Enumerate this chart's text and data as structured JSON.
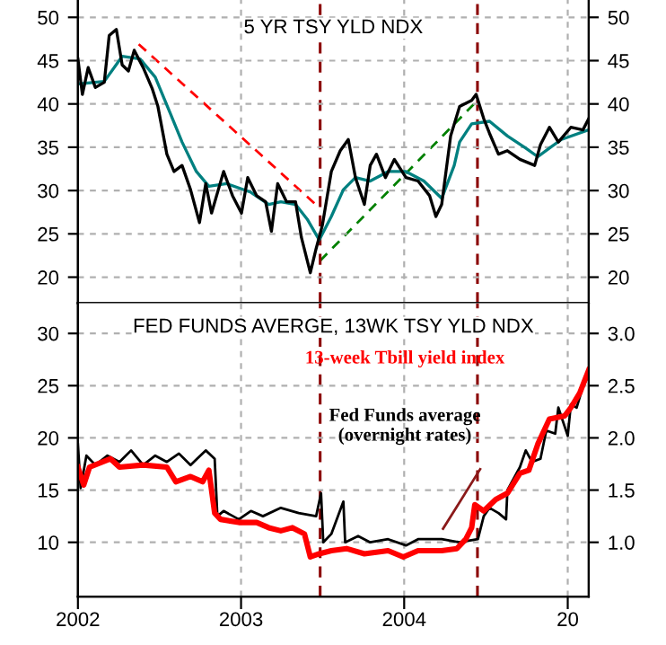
{
  "chart_data": [
    {
      "type": "line",
      "title": "5 YR TSY YLD NDX",
      "tick_labels": "y",
      "grid": true,
      "xlim": [
        "2002-01-01",
        "2005-02-17"
      ],
      "xticks": [
        {
          "value": "2003-01-01",
          "label": null
        },
        {
          "value": "2004-01-01",
          "label": null
        },
        {
          "value": "2005-01-01",
          "label": null
        }
      ],
      "ylim": [
        17,
        52
      ],
      "yticks": [
        20,
        25,
        30,
        35,
        40,
        45,
        50
      ],
      "y2lim": [
        17,
        52
      ],
      "y2ticks": [
        20,
        25,
        30,
        35,
        40,
        45,
        50
      ],
      "ref_lines": [
        {
          "axis": "x",
          "value": "2003-06-27",
          "color": "#8b0000",
          "line_style": "dashed"
        },
        {
          "axis": "x",
          "value": "2004-06-13",
          "color": "#8b0000",
          "line_style": "dashed"
        }
      ],
      "series": [
        {
          "color": "#000000",
          "x": [
            "2002-01-01",
            "2002-01-11",
            "2002-01-24",
            "2002-02-09",
            "2002-03-01",
            "2002-03-12",
            "2002-03-28",
            "2002-04-10",
            "2002-04-24",
            "2002-05-07",
            "2002-05-27",
            "2002-06-16",
            "2002-06-29",
            "2002-07-19",
            "2002-08-04",
            "2002-08-22",
            "2002-09-10",
            "2002-09-30",
            "2002-10-14",
            "2002-10-27",
            "2002-11-23",
            "2002-12-13",
            "2003-01-02",
            "2003-01-16",
            "2003-02-05",
            "2003-02-25",
            "2003-03-10",
            "2003-03-24",
            "2003-04-13",
            "2003-05-03",
            "2003-05-16",
            "2003-06-05",
            "2003-06-18",
            "2003-07-02",
            "2003-07-22",
            "2003-08-11",
            "2003-08-29",
            "2003-09-14",
            "2003-10-04",
            "2003-10-17",
            "2003-10-31",
            "2003-11-20",
            "2003-12-10",
            "2004-01-05",
            "2004-02-01",
            "2004-02-27",
            "2004-03-12",
            "2004-03-25",
            "2004-04-14",
            "2004-05-04",
            "2004-05-31",
            "2004-06-10",
            "2004-06-27",
            "2004-07-10",
            "2004-07-30",
            "2004-08-19",
            "2004-09-16",
            "2004-10-19",
            "2004-11-01",
            "2004-11-21",
            "2004-12-11",
            "2005-01-08",
            "2005-02-04",
            "2005-02-17"
          ],
          "values": [
            45.2,
            41.1,
            44.2,
            41.9,
            42.5,
            47.9,
            48.6,
            44.5,
            43.8,
            46.2,
            44.2,
            41.8,
            39.7,
            34.2,
            32.2,
            32.9,
            30.1,
            26.3,
            30.8,
            27.4,
            32.2,
            29.4,
            27.4,
            31.5,
            29.4,
            28.7,
            25.3,
            30.8,
            28.7,
            28.7,
            24.6,
            20.5,
            23.3,
            26.0,
            32.2,
            34.6,
            35.9,
            31.5,
            28.4,
            32.9,
            34.2,
            31.5,
            33.6,
            31.5,
            31.1,
            29.4,
            27.0,
            28.4,
            36.3,
            39.7,
            40.4,
            41.1,
            38.3,
            36.6,
            34.2,
            34.6,
            33.6,
            32.9,
            35.3,
            37.3,
            35.6,
            37.3,
            37.0,
            38.3
          ]
        },
        {
          "color": "#008080",
          "x": [
            "2002-01-01",
            "2002-03-01",
            "2002-04-10",
            "2002-05-20",
            "2002-06-23",
            "2002-07-26",
            "2002-08-22",
            "2002-09-23",
            "2002-10-21",
            "2002-11-30",
            "2003-01-23",
            "2003-03-04",
            "2003-03-31",
            "2003-05-03",
            "2003-05-29",
            "2003-06-25",
            "2003-07-22",
            "2003-08-18",
            "2003-09-14",
            "2003-10-17",
            "2003-11-26",
            "2004-01-05",
            "2004-02-14",
            "2004-03-25",
            "2004-04-22",
            "2004-05-04",
            "2004-05-31",
            "2004-07-10",
            "2004-08-19",
            "2004-09-29",
            "2004-10-26",
            "2004-11-21",
            "2004-12-18",
            "2005-02-17"
          ],
          "values": [
            42.3,
            42.6,
            45.5,
            45.2,
            43.1,
            39.0,
            35.6,
            32.2,
            30.5,
            30.8,
            29.8,
            28.4,
            28.7,
            28.4,
            26.7,
            24.3,
            27.0,
            30.1,
            31.5,
            31.1,
            32.2,
            32.2,
            31.1,
            29.1,
            32.9,
            35.6,
            37.7,
            38.0,
            36.3,
            34.9,
            33.9,
            34.9,
            35.9,
            37.0
          ]
        },
        {
          "type": "line",
          "color": "#ff0000",
          "line_style": "dashed",
          "x": [
            "2002-05-17",
            "2003-06-17"
          ],
          "values": [
            46.9,
            28.4
          ]
        },
        {
          "type": "line",
          "color": "#008000",
          "line_style": "dashed",
          "x": [
            "2003-06-27",
            "2004-06-13"
          ],
          "values": [
            21.9,
            40.4
          ]
        }
      ]
    },
    {
      "type": "line",
      "title": "FED FUNDS AVERGE, 13WK TSY YLD NDX",
      "grid": true,
      "xlim": [
        "2002-01-01",
        "2005-02-17"
      ],
      "xticks": [
        {
          "value": "2002-01-01",
          "label": "2002"
        },
        {
          "value": "2003-01-01",
          "label": "2003"
        },
        {
          "value": "2004-01-01",
          "label": "2004"
        },
        {
          "value": "2005-01-01",
          "label": "20"
        }
      ],
      "ylim": [
        4.8,
        32.9
      ],
      "yticks": [
        10,
        15,
        20,
        25,
        30
      ],
      "y2lim": [
        0.48,
        3.29
      ],
      "y2ticks": [
        {
          "value": 1.0,
          "label": "1.0"
        },
        {
          "value": 1.5,
          "label": "1.5"
        },
        {
          "value": 2.0,
          "label": "2.0"
        },
        {
          "value": 2.5,
          "label": "2.5"
        },
        {
          "value": 3.0,
          "label": "3.0"
        }
      ],
      "ref_lines": [
        {
          "axis": "x",
          "value": "2003-06-27",
          "color": "#8b0000",
          "line_style": "dashed"
        },
        {
          "axis": "x",
          "value": "2004-06-13",
          "color": "#8b0000",
          "line_style": "dashed"
        }
      ],
      "series": [
        {
          "name": "Fed Funds average\n(overnight rates)",
          "color": "#000000",
          "x": [
            "2002-01-01",
            "2002-01-07",
            "2002-01-20",
            "2002-02-09",
            "2002-03-08",
            "2002-04-04",
            "2002-04-30",
            "2002-05-27",
            "2002-06-23",
            "2002-07-19",
            "2002-08-15",
            "2002-09-10",
            "2002-10-14",
            "2002-11-03",
            "2002-11-09",
            "2002-11-23",
            "2002-12-27",
            "2003-01-23",
            "2003-02-19",
            "2003-03-31",
            "2003-05-10",
            "2003-06-18",
            "2003-06-29",
            "2003-07-04",
            "2003-07-22",
            "2003-08-18",
            "2003-08-22",
            "2003-09-20",
            "2003-10-17",
            "2003-11-26",
            "2004-01-05",
            "2004-02-01",
            "2004-03-25",
            "2004-05-04",
            "2004-06-14",
            "2004-06-27",
            "2004-07-10",
            "2004-07-30",
            "2004-08-16",
            "2004-08-19",
            "2004-09-16",
            "2004-09-29",
            "2004-10-13",
            "2004-11-01",
            "2004-11-14",
            "2004-12-04",
            "2004-12-11",
            "2005-01-01",
            "2005-01-08",
            "2005-01-21",
            "2005-02-04",
            "2005-02-17"
          ],
          "values": [
            19.4,
            15.2,
            18.3,
            17.4,
            18.3,
            17.7,
            18.8,
            17.4,
            18.3,
            17.7,
            18.5,
            17.4,
            18.8,
            18.0,
            12.5,
            13.0,
            12.2,
            13.0,
            12.5,
            13.3,
            12.8,
            12.5,
            14.7,
            10.0,
            10.8,
            13.9,
            10.0,
            10.6,
            10.0,
            10.3,
            9.7,
            10.3,
            10.3,
            10.0,
            10.3,
            12.5,
            13.3,
            12.8,
            12.2,
            15.0,
            17.2,
            18.8,
            17.7,
            18.0,
            20.7,
            20.4,
            22.9,
            20.2,
            23.2,
            22.9,
            24.9,
            26.0
          ]
        },
        {
          "name": "13-week Tbill yield index",
          "color": "#ff0000",
          "x": [
            "2002-01-01",
            "2002-01-14",
            "2002-01-27",
            "2002-03-15",
            "2002-04-04",
            "2002-05-27",
            "2002-07-19",
            "2002-08-08",
            "2002-09-10",
            "2002-10-07",
            "2002-10-21",
            "2002-11-03",
            "2002-11-16",
            "2002-12-27",
            "2003-02-05",
            "2003-03-04",
            "2003-03-31",
            "2003-04-26",
            "2003-05-23",
            "2003-06-05",
            "2003-06-25",
            "2003-07-22",
            "2003-08-25",
            "2003-10-04",
            "2003-11-26",
            "2003-12-30",
            "2004-02-01",
            "2004-03-25",
            "2004-04-28",
            "2004-05-18",
            "2004-05-31",
            "2004-06-07",
            "2004-06-27",
            "2004-07-24",
            "2004-08-19",
            "2004-09-16",
            "2004-10-06",
            "2004-10-26",
            "2004-11-21",
            "2004-12-25",
            "2005-01-08",
            "2005-01-28",
            "2005-02-17"
          ],
          "values": [
            17.2,
            15.5,
            17.2,
            18.0,
            17.2,
            17.4,
            17.2,
            15.8,
            16.3,
            15.8,
            16.9,
            12.8,
            12.2,
            11.9,
            11.9,
            11.4,
            11.1,
            11.4,
            10.8,
            8.6,
            8.9,
            9.2,
            9.4,
            8.9,
            9.2,
            8.6,
            9.2,
            9.2,
            9.4,
            10.3,
            11.4,
            13.6,
            13.0,
            14.1,
            14.7,
            16.6,
            16.9,
            19.4,
            21.8,
            22.1,
            22.9,
            24.3,
            26.5
          ]
        },
        {
          "type": "line",
          "color": "#8b1a1a",
          "x": [
            "2004-03-28",
            "2004-06-19"
          ],
          "values": [
            11.3,
            17.0
          ]
        }
      ]
    }
  ]
}
